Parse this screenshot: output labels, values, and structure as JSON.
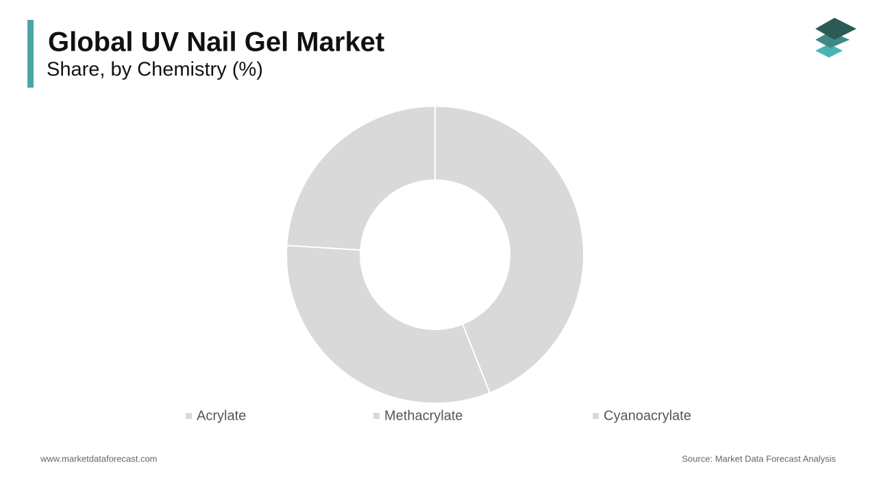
{
  "chart_data": {
    "type": "donut",
    "title": "Global UV Nail Gel Market",
    "subtitle": "Share, by Chemistry (%)",
    "categories": [
      "Acrylate",
      "Methacrylate",
      "Cyanoacrylate"
    ],
    "values": [
      44,
      32,
      24
    ],
    "colors": [
      "#d9d9d9",
      "#d9d9d9",
      "#d9d9d9"
    ]
  },
  "footer": {
    "website": "www.marketdataforecast.com",
    "source": "Source: Market Data Forecast Analysis"
  }
}
